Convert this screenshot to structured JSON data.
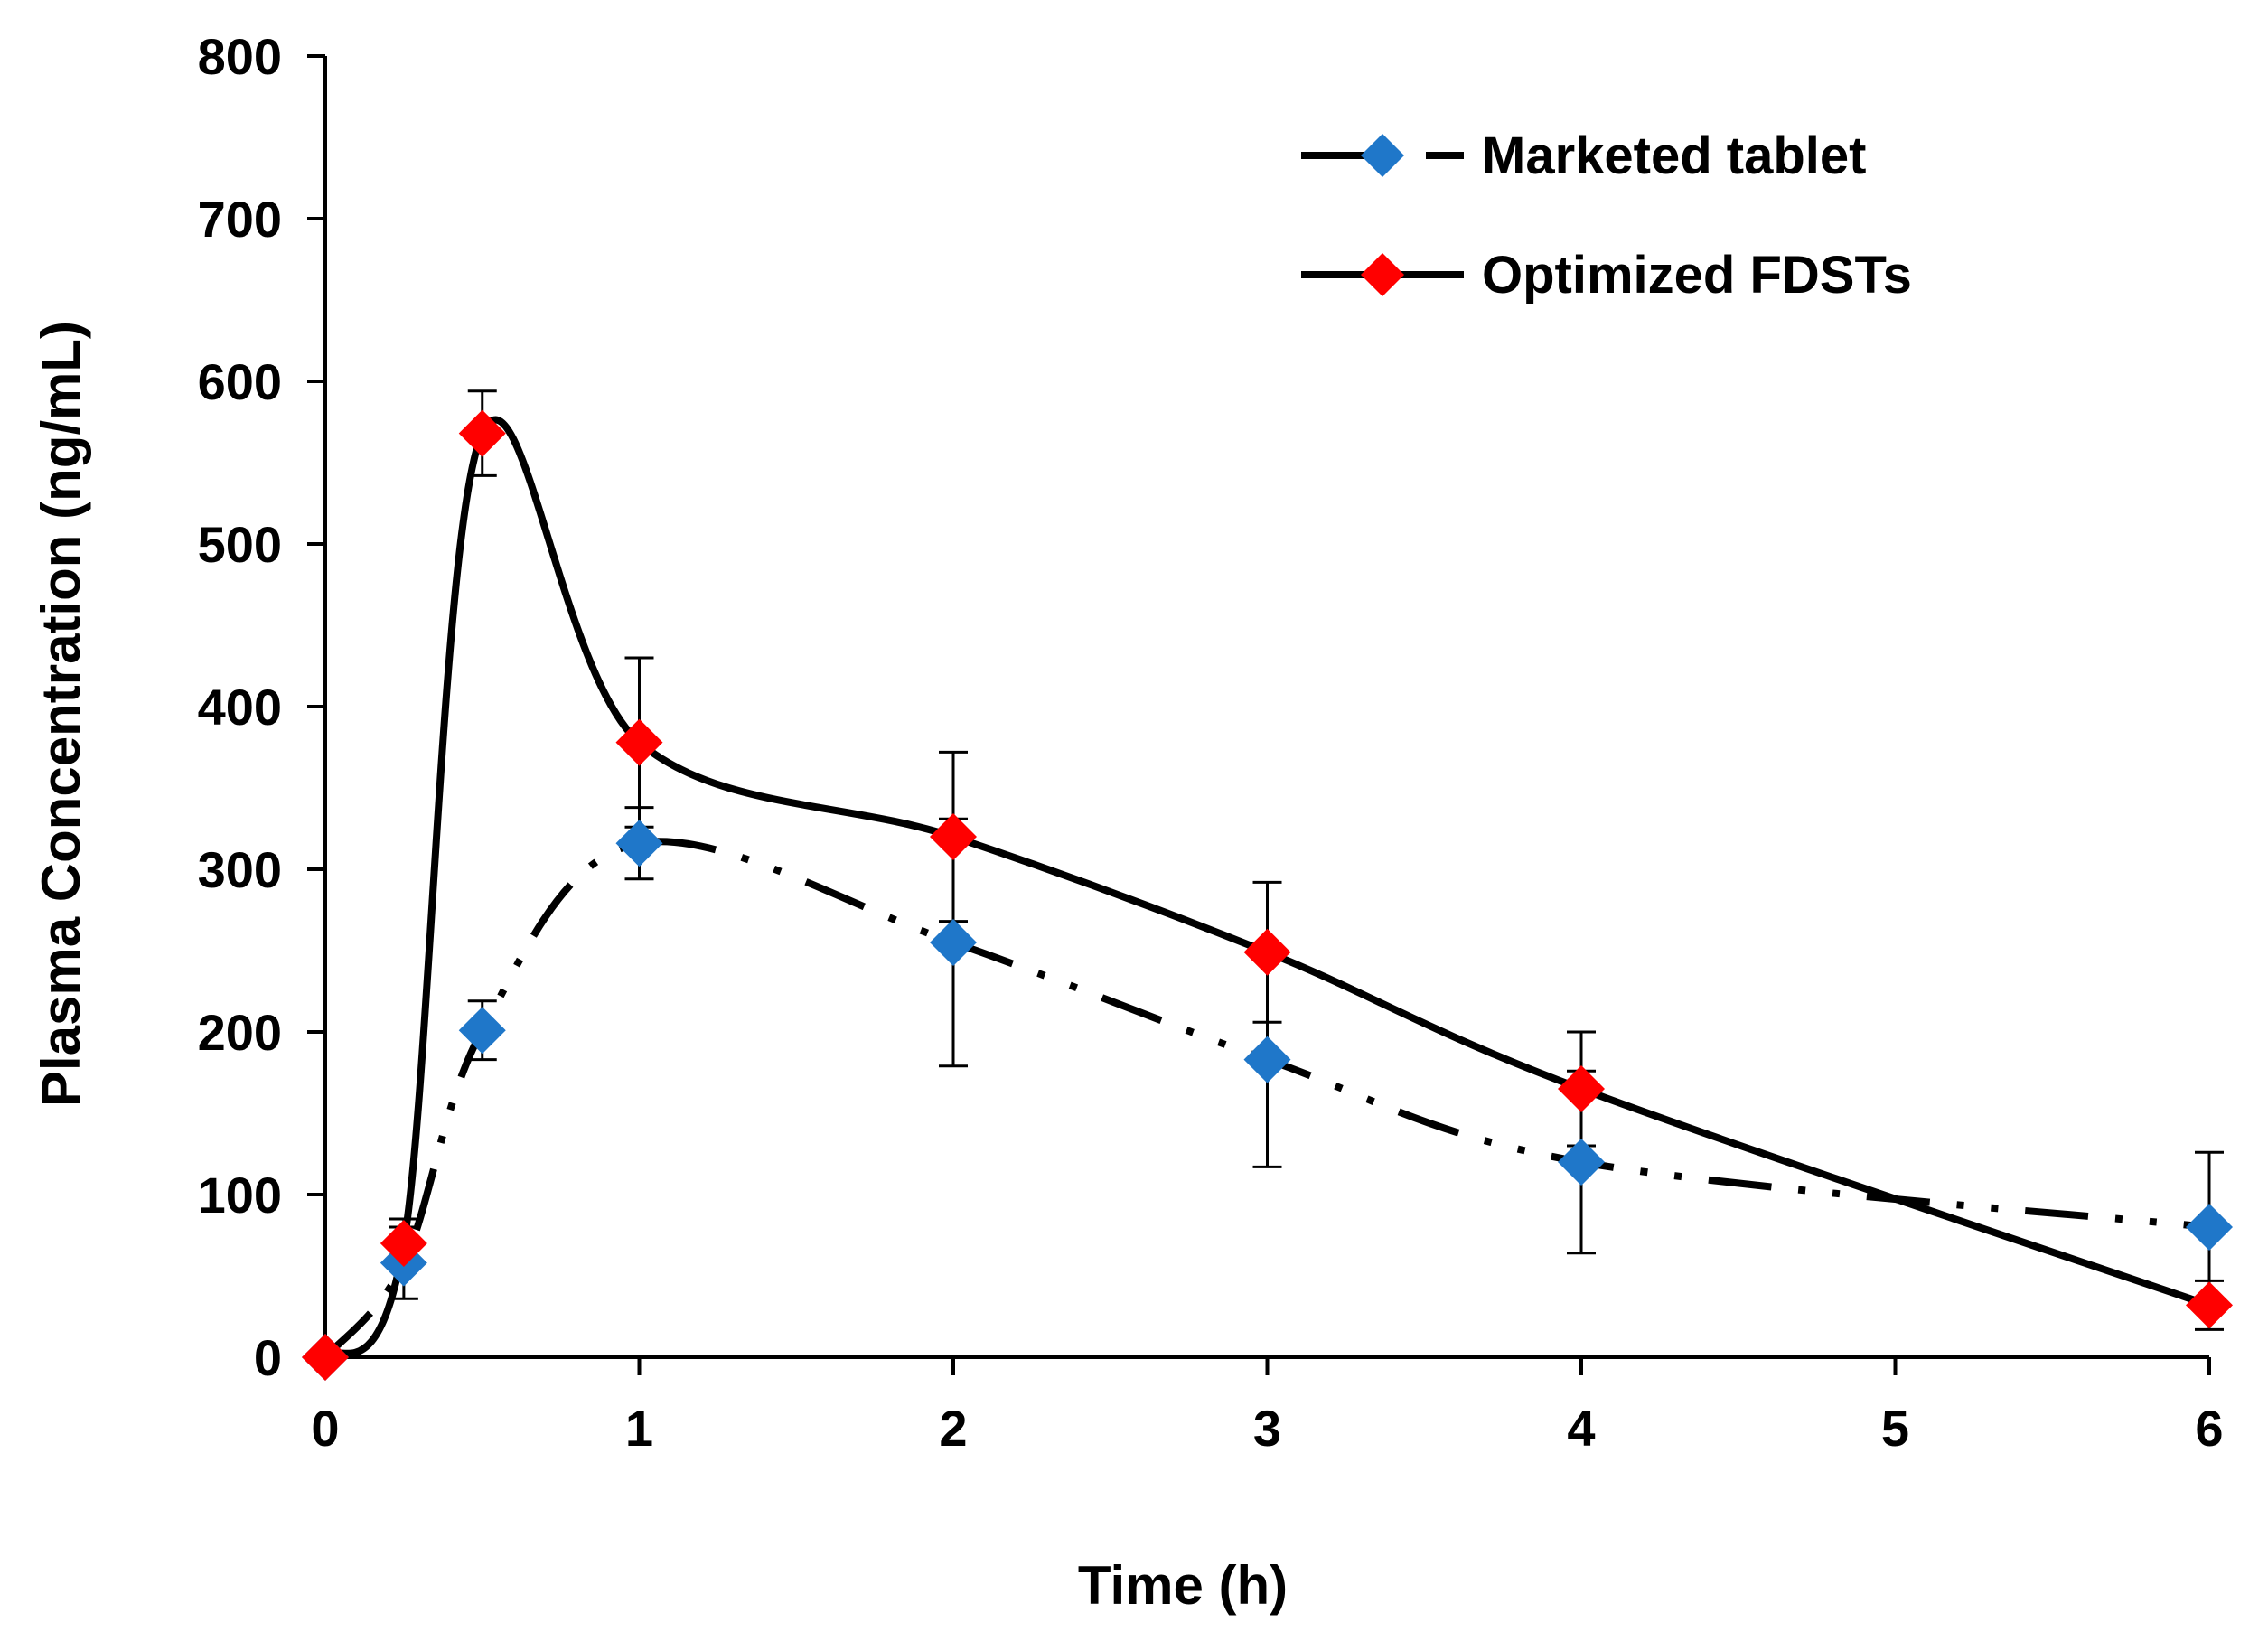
{
  "chart_data": {
    "type": "line",
    "title": "",
    "xlabel": "Time (h)",
    "ylabel": "Plasma Concentration (ng/mL)",
    "xlim": [
      0,
      6
    ],
    "ylim": [
      0,
      800
    ],
    "xticks": [
      0,
      1,
      2,
      3,
      4,
      5,
      6
    ],
    "yticks": [
      0,
      100,
      200,
      300,
      400,
      500,
      600,
      700,
      800
    ],
    "grid": false,
    "legend_position": "top-right",
    "series": [
      {
        "name": "Marketed tablet",
        "marker_color": "#1f77c9",
        "line_style": "dash-dot-dot",
        "x": [
          0,
          0.25,
          0.5,
          1,
          2,
          3,
          4,
          6
        ],
        "y": [
          0,
          58,
          201,
          316,
          255,
          183,
          120,
          80
        ],
        "error": [
          0,
          22,
          18,
          22,
          76,
          66,
          56,
          46
        ]
      },
      {
        "name": "Optimized FDSTs",
        "marker_color": "#ff0000",
        "line_style": "solid",
        "x": [
          0,
          0.25,
          0.5,
          1,
          2,
          3,
          4,
          6
        ],
        "y": [
          0,
          70,
          568,
          378,
          320,
          249,
          165,
          32
        ],
        "error": [
          0,
          15,
          26,
          52,
          52,
          43,
          35,
          15
        ]
      }
    ]
  }
}
